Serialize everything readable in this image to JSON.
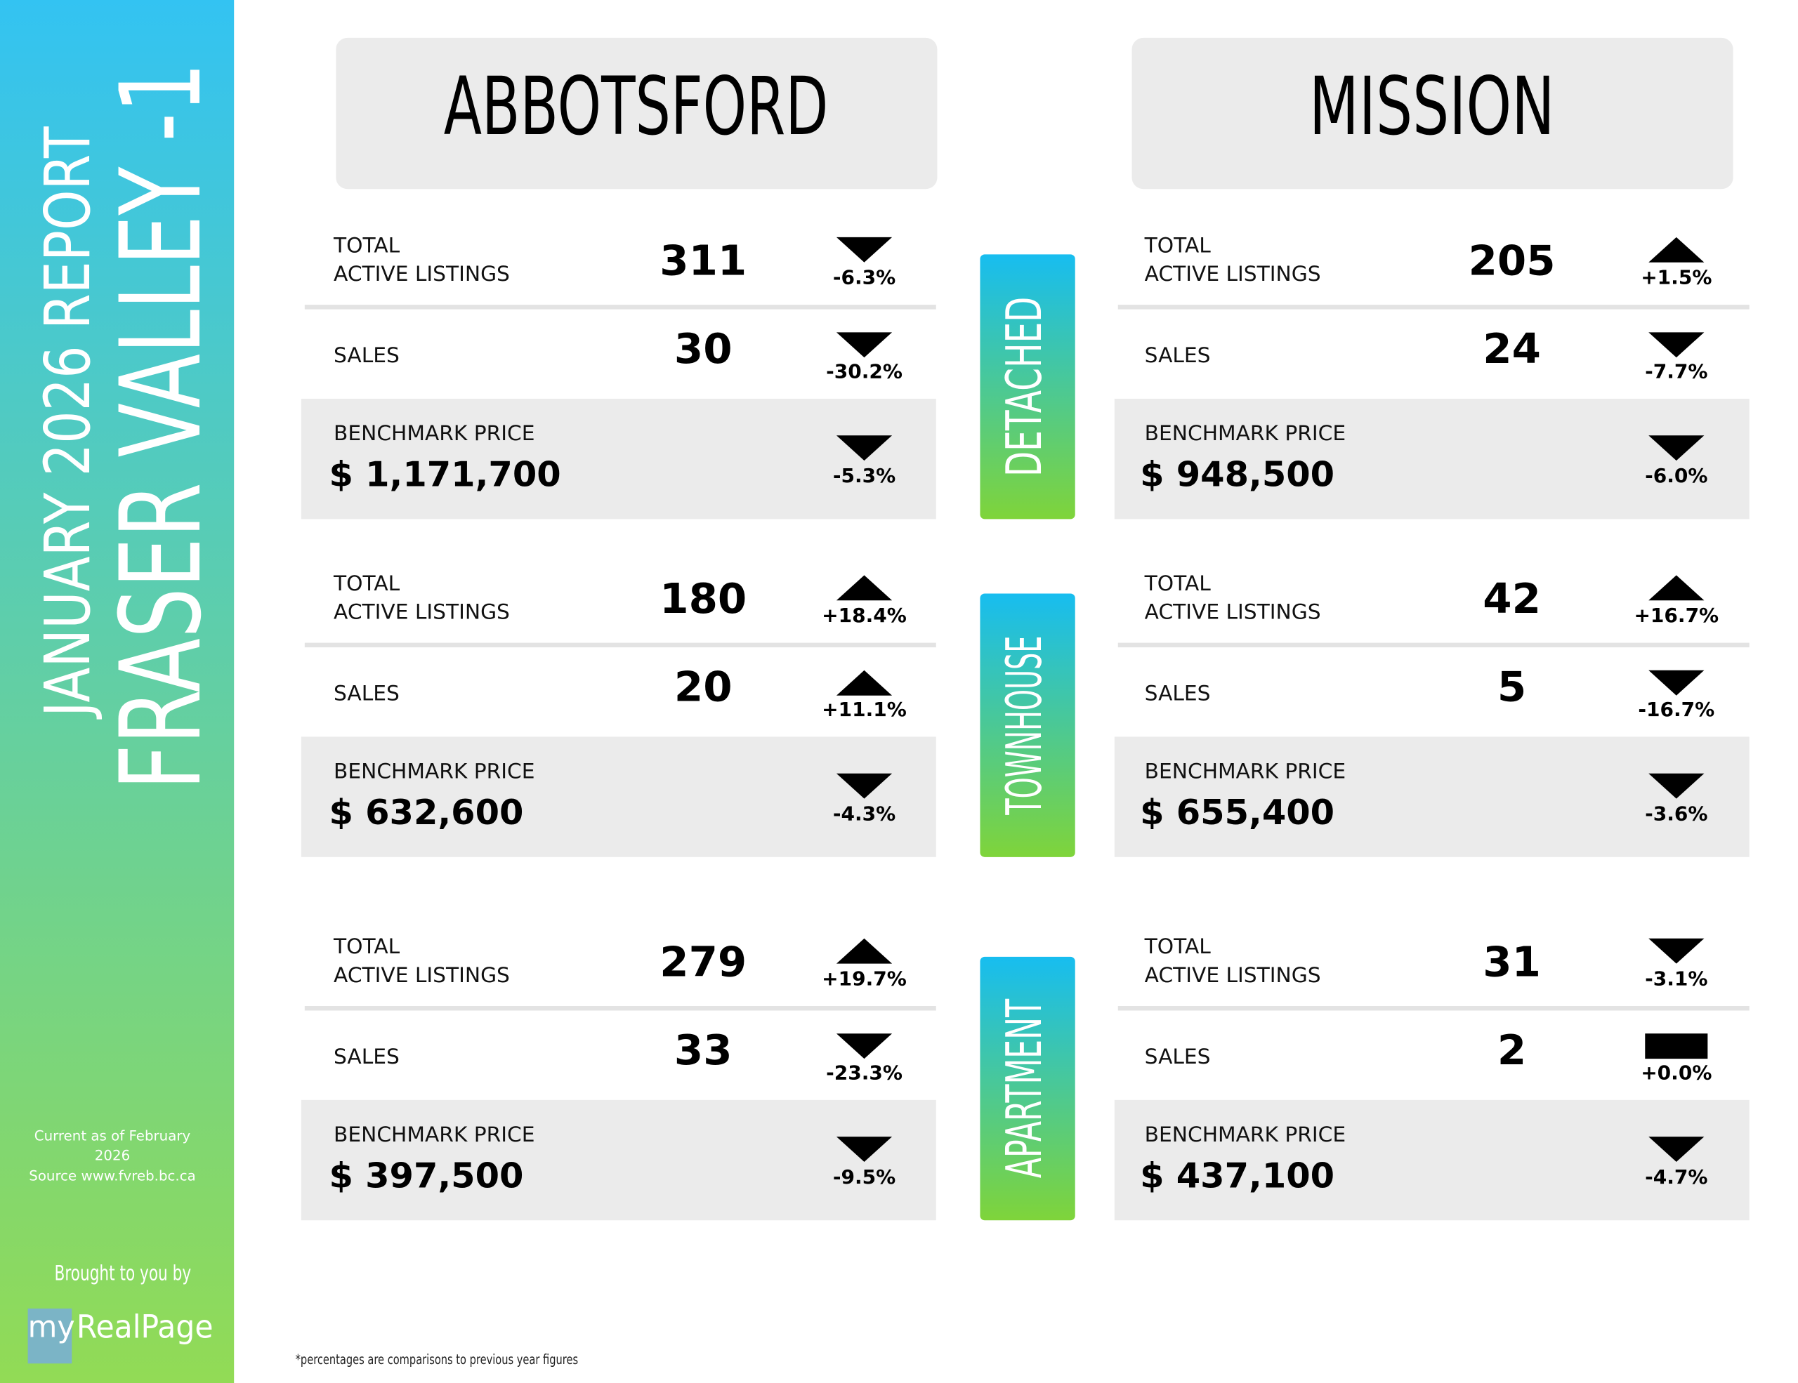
{
  "sidebar": {
    "report": "JANUARY 2026 REPORT",
    "region": "FRASER VALLEY -1",
    "note": [
      "Current as of February",
      "2026",
      "Source www.fvreb.bc.ca"
    ],
    "brought": "Brought to you by",
    "logo": {
      "prefix": "my",
      "name": "RealPage"
    }
  },
  "categories": [
    "DETACHED",
    "TOWNHOUSE",
    "APARTMENT"
  ],
  "cities": [
    {
      "name": "ABBOTSFORD",
      "sections": [
        {
          "listings": {
            "label": [
              "TOTAL",
              "ACTIVE LISTINGS"
            ],
            "value": 311,
            "change": "-6.3%"
          },
          "sales": {
            "label": "SALES",
            "value": 30,
            "change": "-30.2%"
          },
          "benchmark": {
            "label": "BENCHMARK PRICE",
            "value": "$ 1,171,700",
            "change": "-5.3%"
          }
        },
        {
          "listings": {
            "label": [
              "TOTAL",
              "ACTIVE LISTINGS"
            ],
            "value": 180,
            "change": "+18.4%"
          },
          "sales": {
            "label": "SALES",
            "value": 20,
            "change": "+11.1%"
          },
          "benchmark": {
            "label": "BENCHMARK PRICE",
            "value": "$ 632,600",
            "change": "-4.3%"
          }
        },
        {
          "listings": {
            "label": [
              "TOTAL",
              "ACTIVE LISTINGS"
            ],
            "value": 279,
            "change": "+19.7%"
          },
          "sales": {
            "label": "SALES",
            "value": 33,
            "change": "-23.3%"
          },
          "benchmark": {
            "label": "BENCHMARK PRICE",
            "value": "$ 397,500",
            "change": "-9.5%"
          }
        }
      ]
    },
    {
      "name": "MISSION",
      "sections": [
        {
          "listings": {
            "label": [
              "TOTAL",
              "ACTIVE LISTINGS"
            ],
            "value": 205,
            "change": "+1.5%"
          },
          "sales": {
            "label": "SALES",
            "value": 24,
            "change": "-7.7%"
          },
          "benchmark": {
            "label": "BENCHMARK PRICE",
            "value": "$ 948,500",
            "change": "-6.0%"
          }
        },
        {
          "listings": {
            "label": [
              "TOTAL",
              "ACTIVE LISTINGS"
            ],
            "value": 42,
            "change": "+16.7%"
          },
          "sales": {
            "label": "SALES",
            "value": 5,
            "change": "-16.7%"
          },
          "benchmark": {
            "label": "BENCHMARK PRICE",
            "value": "$ 655,400",
            "change": "-3.6%"
          }
        },
        {
          "listings": {
            "label": [
              "TOTAL",
              "ACTIVE LISTINGS"
            ],
            "value": 31,
            "change": "-3.1%"
          },
          "sales": {
            "label": "SALES",
            "value": 2,
            "change": "+0.0%"
          },
          "benchmark": {
            "label": "BENCHMARK PRICE",
            "value": "$ 437,100",
            "change": "-4.7%"
          }
        }
      ]
    }
  ],
  "footnote": "*percentages are comparisons to previous year figures"
}
